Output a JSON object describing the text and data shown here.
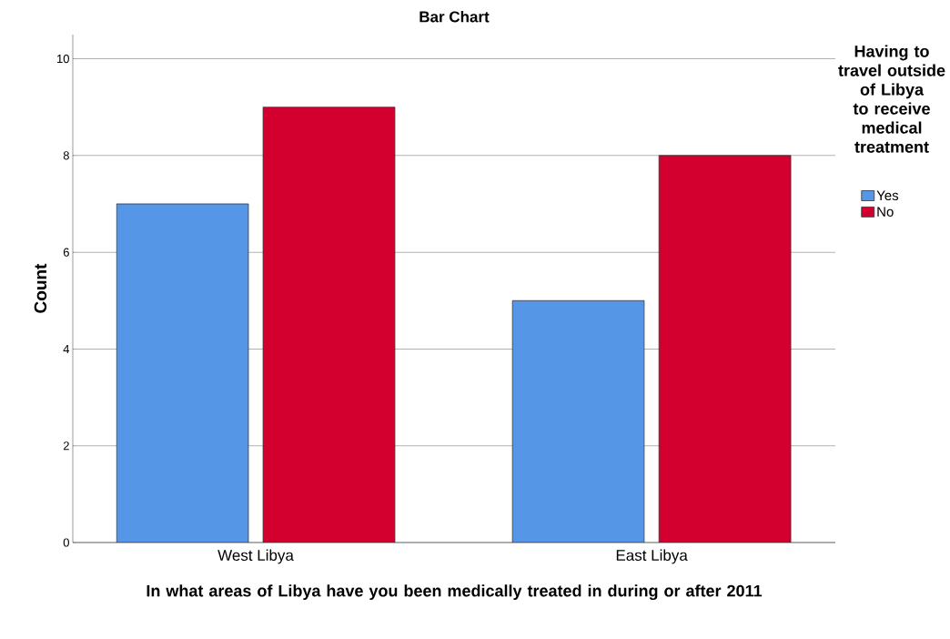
{
  "chart_data": {
    "type": "bar",
    "title": "Bar Chart",
    "xlabel": "In what areas of Libya have you been medically treated in during or after 2011",
    "ylabel": "Count",
    "legend_title": "Having to travel outside of Libya to receive medical treatment",
    "categories": [
      "West Libya",
      "East Libya"
    ],
    "series": [
      {
        "name": "Yes",
        "color": "#5596e6",
        "values": [
          7,
          5
        ]
      },
      {
        "name": "No",
        "color": "#d3002f",
        "values": [
          9,
          8
        ]
      }
    ],
    "ylim": [
      0,
      10.5
    ],
    "yticks": [
      0,
      2,
      4,
      6,
      8,
      10
    ],
    "grid": "y",
    "legend": "right"
  }
}
